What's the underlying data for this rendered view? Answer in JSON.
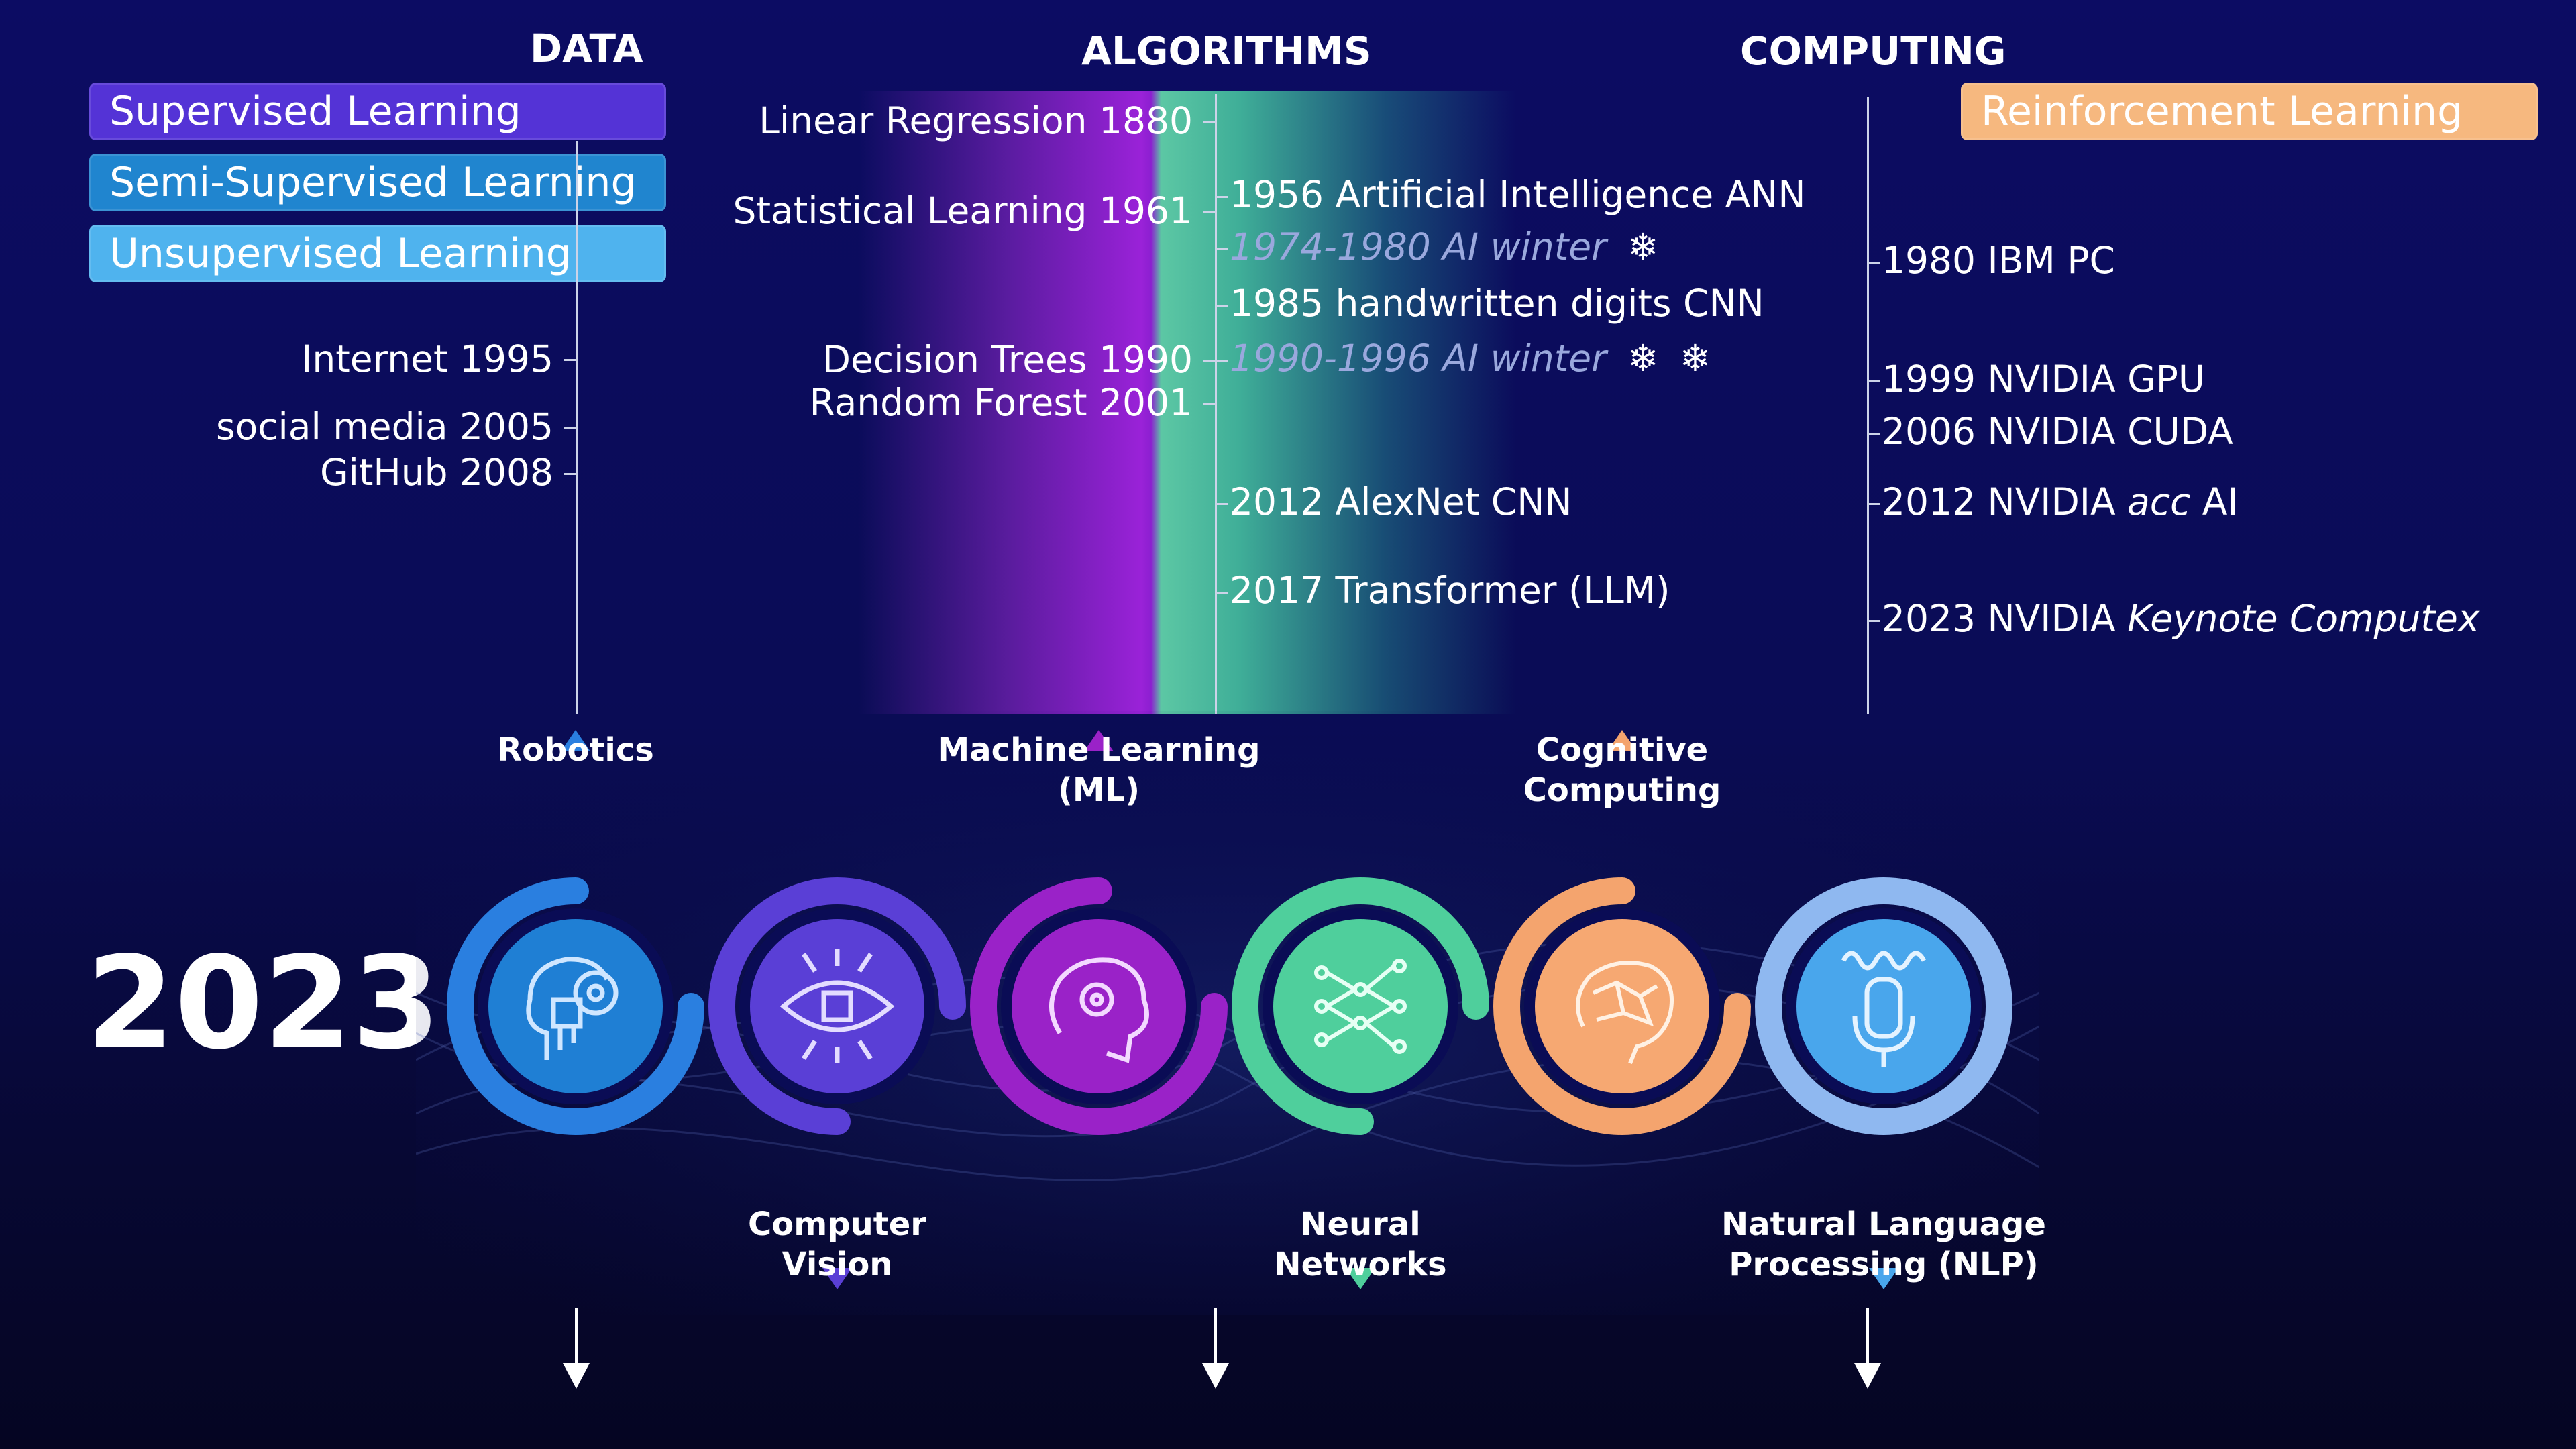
{
  "columns": {
    "data": "DATA",
    "algorithms": "ALGORITHMS",
    "computing": "COMPUTING"
  },
  "learning_tags": {
    "supervised": "Supervised Learning",
    "semi_supervised": "Semi-Supervised Learning",
    "unsupervised": "Unsupervised Learning",
    "reinforcement": "Reinforcement Learning"
  },
  "data_events": {
    "internet": "Internet 1995",
    "social_media": "social media 2005",
    "github": "GitHub  2008"
  },
  "algorithm_left_events": {
    "linear_regression": "Linear Regression 1880",
    "statistical_learning": "Statistical Learning 1961",
    "decision_trees": "Decision Trees 1990",
    "random_forest": "Random Forest 2001"
  },
  "algorithm_right_events": {
    "ann": "1956 Artificial Intelligence ANN",
    "winter1": "1974-1980 AI winter",
    "cnn_digits": "1985 handwritten digits CNN",
    "winter2": "1990-1996 AI winter",
    "alexnet": "2012 AlexNet CNN",
    "transformer": "2017 Transformer (LLM)"
  },
  "snowflake": "❄",
  "computing_events": {
    "ibm_pc": "1980 IBM PC",
    "nvidia_gpu": "1999 NVIDIA GPU",
    "nvidia_cuda": "2006 NVIDIA CUDA",
    "acc_ai_pre": "2012 NVIDIA ",
    "acc_ai_em": "acc",
    "acc_ai_post": " AI",
    "keynote_pre": "2023 NVIDIA ",
    "keynote_em": "Keynote Computex"
  },
  "year": "2023",
  "ai_fields": {
    "robotics": "Robotics",
    "ml_line1": "Machine Learning",
    "ml_line2": "(ML)",
    "cognitive_line1": "Cognitive",
    "cognitive_line2": "Computing",
    "cv_line1": "Computer",
    "cv_line2": "Vision",
    "nn_line1": "Neural",
    "nn_line2": "Networks",
    "nlp_line1": "Natural Language",
    "nlp_line2": "Processing (NLP)"
  },
  "colors": {
    "supervised": "#5433d6",
    "semi_supervised": "#2085cf",
    "unsupervised": "#4fb3ee",
    "reinforcement": "#f6b87f",
    "robotics": "#1f7fd4",
    "computer_vision": "#5a3fd6",
    "machine_learning": "#9a22c8",
    "neural_networks": "#4fcf9c",
    "cognitive": "#f4a46e",
    "nlp": "#49a6ec"
  }
}
